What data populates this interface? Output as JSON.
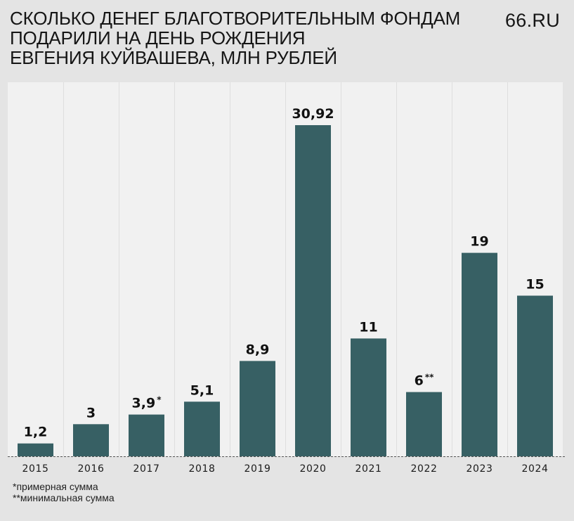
{
  "header": {
    "title_lines": [
      "СКОЛЬКО ДЕНЕГ БЛАГОТВОРИТЕЛЬНЫМ ФОНДАМ",
      "ПОДАРИЛИ НА ДЕНЬ РОЖДЕНИЯ",
      "ЕВГЕНИЯ КУЙВАШЕВА, МЛН РУБЛЕЙ"
    ],
    "brand": "66.RU"
  },
  "colors": {
    "bar": "#376064",
    "panel": "#f1f1f1",
    "page": "#e4e4e4",
    "gridline": "#dedede",
    "text": "#111111"
  },
  "chart_data": {
    "type": "bar",
    "categories": [
      "2015",
      "2016",
      "2017",
      "2018",
      "2019",
      "2020",
      "2021",
      "2022",
      "2023",
      "2024"
    ],
    "values": [
      1.2,
      3,
      3.9,
      5.1,
      8.9,
      30.92,
      11,
      6,
      19,
      15
    ],
    "data_labels": [
      "1,2",
      "3",
      "3,9",
      "5,1",
      "8,9",
      "30,92",
      "11",
      "6",
      "19",
      "15"
    ],
    "label_marks": [
      "",
      "",
      "*",
      "",
      "",
      "",
      "",
      "**",
      "",
      ""
    ],
    "ylim": [
      0,
      35
    ],
    "grid": "vertical separators",
    "xlabel": "",
    "ylabel": ""
  },
  "footnotes": {
    "note1": "*примерная сумма",
    "note2": "**минимальная сумма"
  }
}
